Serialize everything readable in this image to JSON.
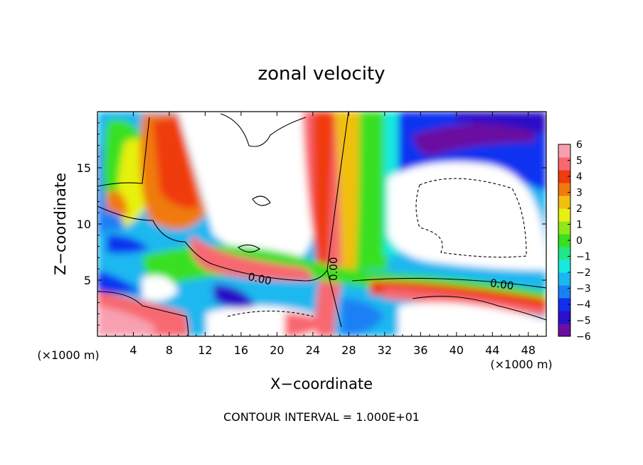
{
  "chart_data": {
    "type": "heatmap",
    "title": "zonal velocity",
    "xlabel": "X−coordinate",
    "ylabel": "Z−coordinate",
    "x_unit_left": "(×1000 m)",
    "x_unit_right": "(×1000 m)",
    "xlim": [
      0,
      50
    ],
    "ylim": [
      0,
      20
    ],
    "x_ticks": [
      4,
      8,
      12,
      16,
      20,
      24,
      28,
      32,
      36,
      40,
      44,
      48
    ],
    "y_ticks": [
      5,
      10,
      15
    ],
    "colorbar": {
      "min": -6,
      "max": 6,
      "ticks": [
        6,
        5,
        4,
        3,
        2,
        1,
        0,
        -1,
        -2,
        -3,
        -4,
        -5,
        -6
      ],
      "tick_labels": [
        "6",
        "5",
        "4",
        "3",
        "2",
        "1",
        "0",
        "−1",
        "−2",
        "−3",
        "−4",
        "−5",
        "−6"
      ],
      "colors": [
        "#6a0fa0",
        "#2a10c8",
        "#1030f0",
        "#1a80f5",
        "#1ab8f0",
        "#18e8e0",
        "#20e888",
        "#38e020",
        "#90e818",
        "#e8f010",
        "#f0c010",
        "#f07a10",
        "#f03a10",
        "#f86870",
        "#f8a0b0"
      ]
    },
    "contour_labels": [
      {
        "x": 18,
        "y": 4.8,
        "text": "0.00"
      },
      {
        "x": 26.7,
        "y": 6,
        "text": "0.00"
      },
      {
        "x": 45,
        "y": 4.3,
        "text": "0.00"
      }
    ],
    "footer": "CONTOUR INTERVAL =  1.000E+01"
  }
}
